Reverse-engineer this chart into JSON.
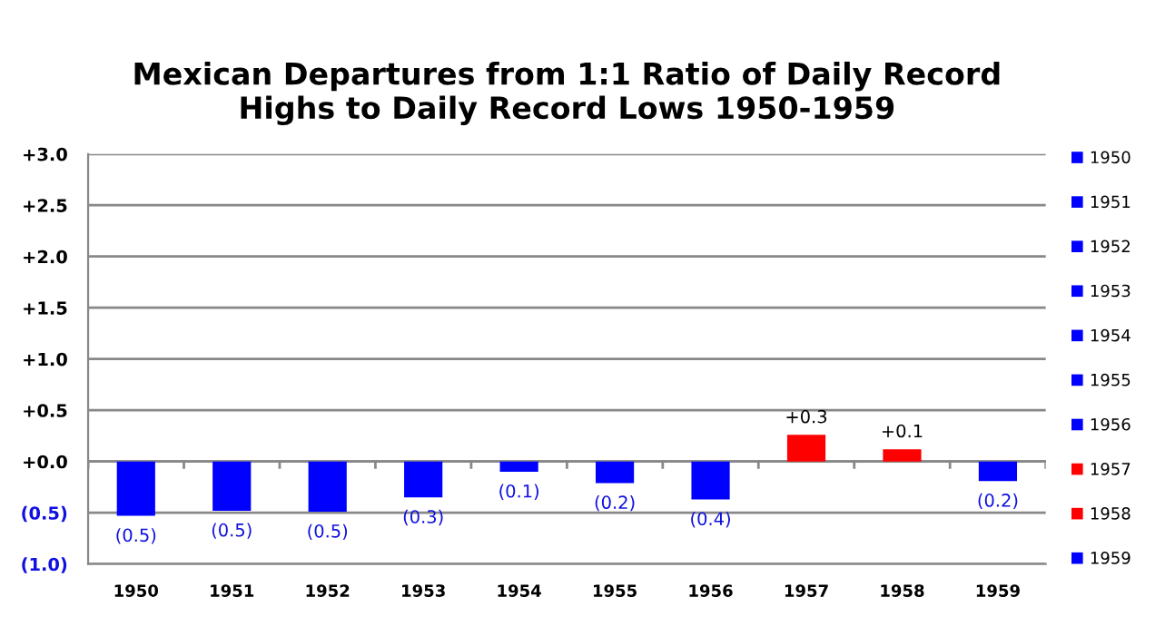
{
  "chart_data": {
    "type": "bar",
    "title": "Mexican Departures from 1:1 Ratio of Daily Record\nHighs to Daily Record Lows 1950-1959",
    "categories": [
      "1950",
      "1951",
      "1952",
      "1953",
      "1954",
      "1955",
      "1956",
      "1957",
      "1958",
      "1959"
    ],
    "series": [
      {
        "name": "1950",
        "color": "#0000ff",
        "values": [
          -0.53,
          null,
          null,
          null,
          null,
          null,
          null,
          null,
          null,
          null
        ],
        "value_labels": [
          "(0.5)",
          null,
          null,
          null,
          null,
          null,
          null,
          null,
          null,
          null
        ]
      },
      {
        "name": "1951",
        "color": "#0000ff",
        "values": [
          null,
          -0.48,
          null,
          null,
          null,
          null,
          null,
          null,
          null,
          null
        ],
        "value_labels": [
          null,
          "(0.5)",
          null,
          null,
          null,
          null,
          null,
          null,
          null,
          null
        ]
      },
      {
        "name": "1952",
        "color": "#0000ff",
        "values": [
          null,
          null,
          -0.49,
          null,
          null,
          null,
          null,
          null,
          null,
          null
        ],
        "value_labels": [
          null,
          null,
          "(0.5)",
          null,
          null,
          null,
          null,
          null,
          null,
          null
        ]
      },
      {
        "name": "1953",
        "color": "#0000ff",
        "values": [
          null,
          null,
          null,
          -0.35,
          null,
          null,
          null,
          null,
          null,
          null
        ],
        "value_labels": [
          null,
          null,
          null,
          "(0.3)",
          null,
          null,
          null,
          null,
          null,
          null
        ]
      },
      {
        "name": "1954",
        "color": "#0000ff",
        "values": [
          null,
          null,
          null,
          null,
          -0.1,
          null,
          null,
          null,
          null,
          null
        ],
        "value_labels": [
          null,
          null,
          null,
          null,
          "(0.1)",
          null,
          null,
          null,
          null,
          null
        ]
      },
      {
        "name": "1955",
        "color": "#0000ff",
        "values": [
          null,
          null,
          null,
          null,
          null,
          -0.21,
          null,
          null,
          null,
          null
        ],
        "value_labels": [
          null,
          null,
          null,
          null,
          null,
          "(0.2)",
          null,
          null,
          null,
          null
        ]
      },
      {
        "name": "1956",
        "color": "#0000ff",
        "values": [
          null,
          null,
          null,
          null,
          null,
          null,
          -0.37,
          null,
          null,
          null
        ],
        "value_labels": [
          null,
          null,
          null,
          null,
          null,
          null,
          "(0.4)",
          null,
          null,
          null
        ]
      },
      {
        "name": "1957",
        "color": "#ff0000",
        "values": [
          null,
          null,
          null,
          null,
          null,
          null,
          null,
          0.26,
          null,
          null
        ],
        "value_labels": [
          null,
          null,
          null,
          null,
          null,
          null,
          null,
          "+0.3",
          null,
          null
        ]
      },
      {
        "name": "1958",
        "color": "#ff0000",
        "values": [
          null,
          null,
          null,
          null,
          null,
          null,
          null,
          null,
          0.12,
          null
        ],
        "value_labels": [
          null,
          null,
          null,
          null,
          null,
          null,
          null,
          null,
          "+0.1",
          null
        ]
      },
      {
        "name": "1959",
        "color": "#0000ff",
        "values": [
          null,
          null,
          null,
          null,
          null,
          null,
          null,
          null,
          null,
          -0.19
        ],
        "value_labels": [
          null,
          null,
          null,
          null,
          null,
          null,
          null,
          null,
          null,
          "(0.2)"
        ]
      }
    ],
    "ylim": [
      -1.0,
      3.0
    ],
    "yticks": [
      {
        "value": -1.0,
        "label": "(1.0)"
      },
      {
        "value": -0.5,
        "label": "(0.5)"
      },
      {
        "value": 0.0,
        "label": "+0.0"
      },
      {
        "value": 0.5,
        "label": "+0.5"
      },
      {
        "value": 1.0,
        "label": "+1.0"
      },
      {
        "value": 1.5,
        "label": "+1.5"
      },
      {
        "value": 2.0,
        "label": "+2.0"
      },
      {
        "value": 2.5,
        "label": "+2.5"
      },
      {
        "value": 3.0,
        "label": "+3.0"
      }
    ],
    "grid": "y",
    "legend": "right"
  }
}
